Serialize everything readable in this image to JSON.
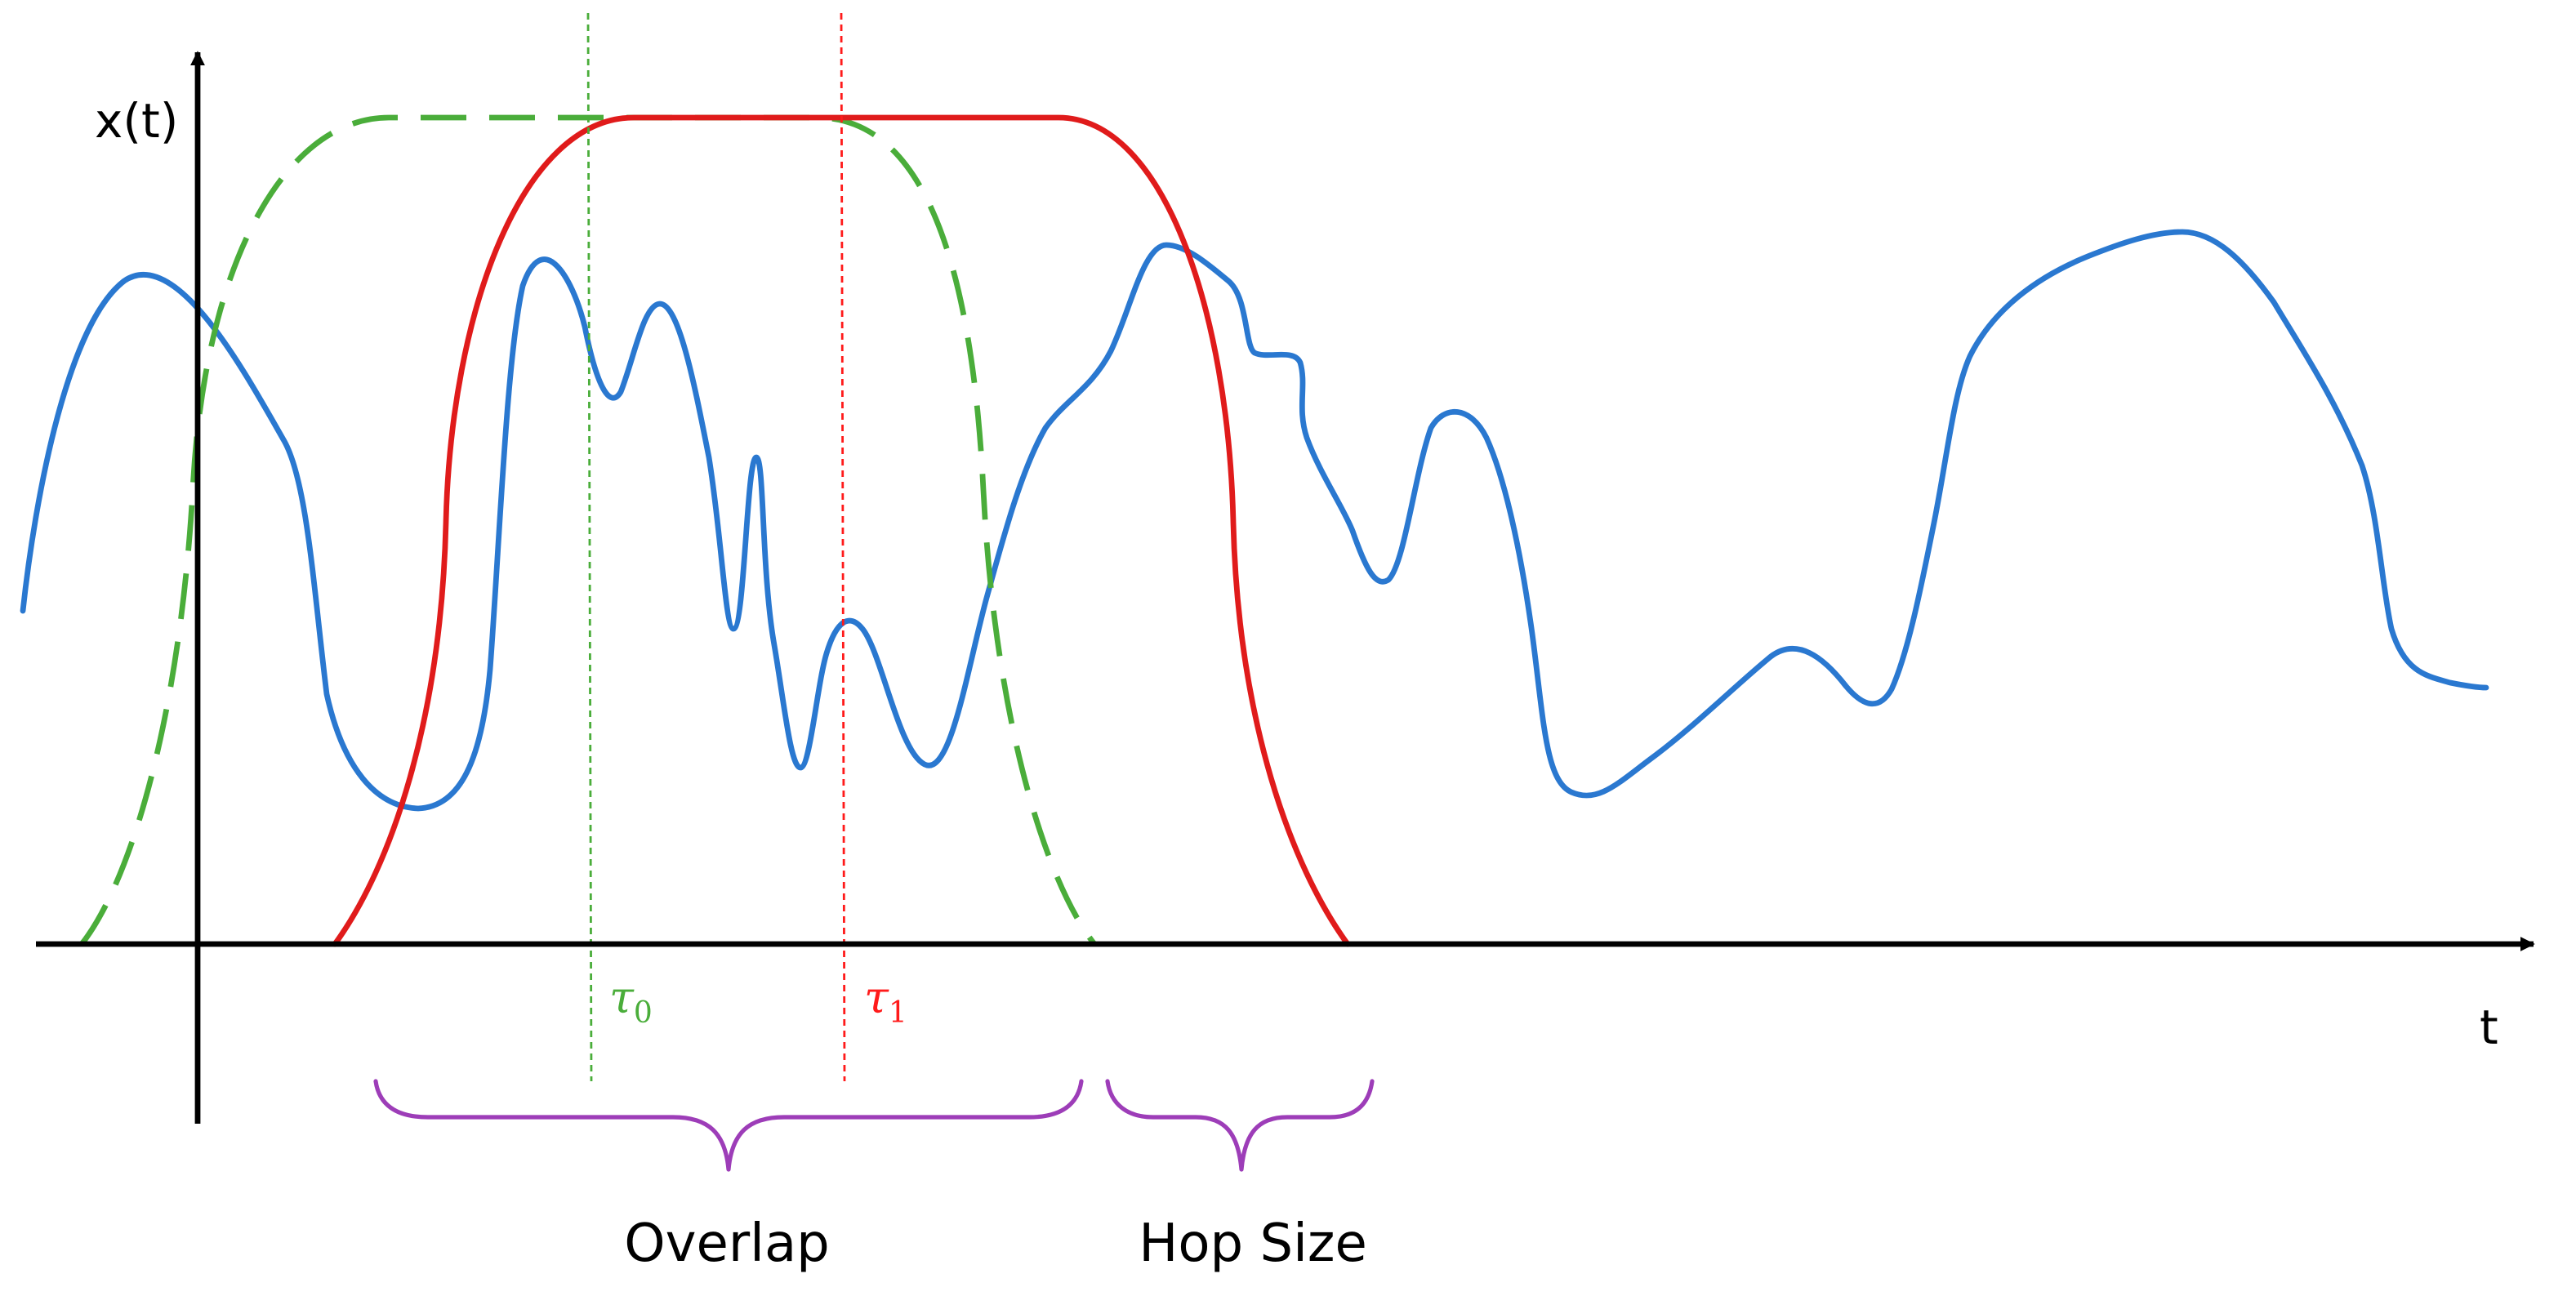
{
  "axes": {
    "y_label": "x(t)",
    "x_label": "t"
  },
  "markers": {
    "tau0": {
      "symbol": "τ",
      "subscript": "0",
      "color": "#4aad3a"
    },
    "tau1": {
      "symbol": "τ",
      "subscript": "1",
      "color": "#ff1a1a"
    }
  },
  "braces": {
    "overlap_label": "Overlap",
    "hop_label": "Hop Size",
    "color": "#9d3db8"
  },
  "colors": {
    "signal": "#2a78d0",
    "window_previous": "#4aad3a",
    "window_current": "#e01b1b",
    "axis": "#000000"
  },
  "icons": {
    "axis_arrows": "arrowhead"
  }
}
